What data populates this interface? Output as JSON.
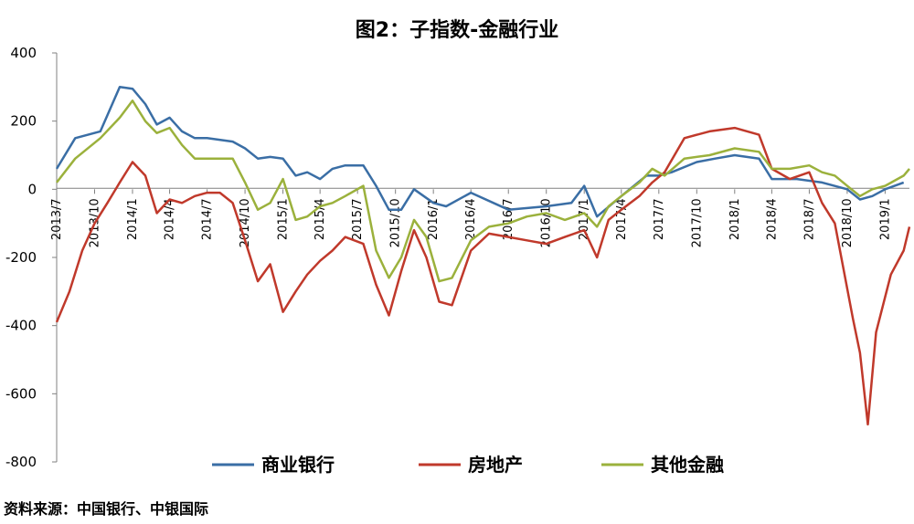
{
  "chart_data": {
    "type": "line",
    "title": "图2：子指数-金融行业",
    "ylim": [
      -800,
      400
    ],
    "yticks": [
      400,
      200,
      0,
      -200,
      -400,
      -600,
      -800
    ],
    "xlim": [
      "2013-07",
      "2019-03"
    ],
    "xticks": [
      "2013/7",
      "2013/10",
      "2014/1",
      "2014/4",
      "2014/7",
      "2014/10",
      "2015/1",
      "2015/4",
      "2015/7",
      "2015/10",
      "2016/1",
      "2016/4",
      "2016/7",
      "2016/10",
      "2017/1",
      "2017/4",
      "2017/7",
      "2017/10",
      "2018/1",
      "2018/4",
      "2018/7",
      "2018/10",
      "2019/1"
    ],
    "legend_position": "bottom",
    "series": [
      {
        "name": "商业银行",
        "color": "#3a6ea5",
        "points": [
          [
            "2013-07-01",
            60
          ],
          [
            "2013-08-15",
            150
          ],
          [
            "2013-10-15",
            170
          ],
          [
            "2013-12-01",
            300
          ],
          [
            "2014-01-01",
            295
          ],
          [
            "2014-02-01",
            250
          ],
          [
            "2014-03-01",
            190
          ],
          [
            "2014-04-01",
            210
          ],
          [
            "2014-05-01",
            170
          ],
          [
            "2014-06-01",
            150
          ],
          [
            "2014-07-01",
            150
          ],
          [
            "2014-09-01",
            140
          ],
          [
            "2014-10-01",
            120
          ],
          [
            "2014-11-01",
            90
          ],
          [
            "2014-12-01",
            95
          ],
          [
            "2015-01-01",
            90
          ],
          [
            "2015-02-01",
            40
          ],
          [
            "2015-03-01",
            50
          ],
          [
            "2015-04-01",
            30
          ],
          [
            "2015-05-01",
            60
          ],
          [
            "2015-06-01",
            70
          ],
          [
            "2015-07-15",
            70
          ],
          [
            "2015-08-15",
            10
          ],
          [
            "2015-09-15",
            -60
          ],
          [
            "2015-10-15",
            -60
          ],
          [
            "2015-11-15",
            0
          ],
          [
            "2016-01-01",
            -40
          ],
          [
            "2016-02-01",
            -50
          ],
          [
            "2016-04-01",
            -10
          ],
          [
            "2016-07-01",
            -60
          ],
          [
            "2016-10-01",
            -50
          ],
          [
            "2016-12-01",
            -40
          ],
          [
            "2017-01-01",
            10
          ],
          [
            "2017-02-01",
            -80
          ],
          [
            "2017-04-01",
            -20
          ],
          [
            "2017-06-01",
            40
          ],
          [
            "2017-07-01",
            40
          ],
          [
            "2017-08-01",
            50
          ],
          [
            "2017-10-01",
            80
          ],
          [
            "2017-11-15",
            90
          ],
          [
            "2018-01-01",
            100
          ],
          [
            "2018-03-01",
            90
          ],
          [
            "2018-04-01",
            30
          ],
          [
            "2018-06-01",
            30
          ],
          [
            "2018-08-01",
            20
          ],
          [
            "2018-10-01",
            0
          ],
          [
            "2018-11-01",
            -30
          ],
          [
            "2018-12-01",
            -20
          ],
          [
            "2019-01-01",
            0
          ],
          [
            "2019-02-15",
            20
          ]
        ]
      },
      {
        "name": "房地产",
        "color": "#c0392b",
        "points": [
          [
            "2013-07-01",
            -390
          ],
          [
            "2013-08-01",
            -300
          ],
          [
            "2013-09-01",
            -180
          ],
          [
            "2013-10-01",
            -100
          ],
          [
            "2013-11-01",
            -40
          ],
          [
            "2013-12-01",
            20
          ],
          [
            "2014-01-01",
            80
          ],
          [
            "2014-02-01",
            40
          ],
          [
            "2014-03-01",
            -70
          ],
          [
            "2014-04-01",
            -30
          ],
          [
            "2014-05-01",
            -40
          ],
          [
            "2014-06-01",
            -20
          ],
          [
            "2014-07-01",
            -10
          ],
          [
            "2014-08-01",
            -10
          ],
          [
            "2014-09-01",
            -40
          ],
          [
            "2014-10-01",
            -150
          ],
          [
            "2014-11-01",
            -270
          ],
          [
            "2014-12-01",
            -220
          ],
          [
            "2015-01-01",
            -360
          ],
          [
            "2015-02-01",
            -300
          ],
          [
            "2015-03-01",
            -250
          ],
          [
            "2015-04-01",
            -210
          ],
          [
            "2015-05-01",
            -180
          ],
          [
            "2015-06-01",
            -140
          ],
          [
            "2015-07-15",
            -160
          ],
          [
            "2015-08-15",
            -280
          ],
          [
            "2015-09-15",
            -370
          ],
          [
            "2015-10-15",
            -240
          ],
          [
            "2015-11-15",
            -120
          ],
          [
            "2015-12-15",
            -200
          ],
          [
            "2016-01-15",
            -330
          ],
          [
            "2016-02-15",
            -340
          ],
          [
            "2016-04-01",
            -180
          ],
          [
            "2016-05-15",
            -130
          ],
          [
            "2016-07-01",
            -140
          ],
          [
            "2016-08-15",
            -150
          ],
          [
            "2016-10-01",
            -160
          ],
          [
            "2016-11-15",
            -140
          ],
          [
            "2017-01-01",
            -120
          ],
          [
            "2017-02-01",
            -200
          ],
          [
            "2017-03-01",
            -90
          ],
          [
            "2017-04-01",
            -60
          ],
          [
            "2017-05-15",
            -20
          ],
          [
            "2017-06-15",
            20
          ],
          [
            "2017-07-15",
            50
          ],
          [
            "2017-09-01",
            150
          ],
          [
            "2017-11-01",
            170
          ],
          [
            "2018-01-01",
            180
          ],
          [
            "2018-03-01",
            160
          ],
          [
            "2018-04-01",
            60
          ],
          [
            "2018-05-15",
            30
          ],
          [
            "2018-07-01",
            50
          ],
          [
            "2018-08-01",
            -40
          ],
          [
            "2018-09-01",
            -100
          ],
          [
            "2018-10-15",
            -380
          ],
          [
            "2018-11-01",
            -480
          ],
          [
            "2018-11-20",
            -690
          ],
          [
            "2018-12-10",
            -420
          ],
          [
            "2019-01-15",
            -250
          ],
          [
            "2019-02-15",
            -180
          ],
          [
            "2019-03-01",
            -110
          ]
        ]
      },
      {
        "name": "其他金融",
        "color": "#9bb13c",
        "points": [
          [
            "2013-07-01",
            20
          ],
          [
            "2013-08-15",
            90
          ],
          [
            "2013-10-15",
            150
          ],
          [
            "2013-12-01",
            210
          ],
          [
            "2014-01-01",
            260
          ],
          [
            "2014-02-01",
            200
          ],
          [
            "2014-03-01",
            165
          ],
          [
            "2014-04-01",
            180
          ],
          [
            "2014-05-01",
            130
          ],
          [
            "2014-06-01",
            90
          ],
          [
            "2014-07-01",
            90
          ],
          [
            "2014-09-01",
            90
          ],
          [
            "2014-10-01",
            20
          ],
          [
            "2014-11-01",
            -60
          ],
          [
            "2014-12-01",
            -40
          ],
          [
            "2015-01-01",
            30
          ],
          [
            "2015-02-01",
            -90
          ],
          [
            "2015-03-01",
            -80
          ],
          [
            "2015-04-01",
            -50
          ],
          [
            "2015-05-01",
            -40
          ],
          [
            "2015-06-01",
            -20
          ],
          [
            "2015-07-15",
            10
          ],
          [
            "2015-08-15",
            -180
          ],
          [
            "2015-09-15",
            -260
          ],
          [
            "2015-10-15",
            -200
          ],
          [
            "2015-11-15",
            -90
          ],
          [
            "2015-12-15",
            -140
          ],
          [
            "2016-01-15",
            -270
          ],
          [
            "2016-02-15",
            -260
          ],
          [
            "2016-04-01",
            -150
          ],
          [
            "2016-05-15",
            -110
          ],
          [
            "2016-07-01",
            -100
          ],
          [
            "2016-08-15",
            -80
          ],
          [
            "2016-10-01",
            -70
          ],
          [
            "2016-11-15",
            -90
          ],
          [
            "2017-01-01",
            -70
          ],
          [
            "2017-02-01",
            -110
          ],
          [
            "2017-03-01",
            -50
          ],
          [
            "2017-04-01",
            -20
          ],
          [
            "2017-05-15",
            20
          ],
          [
            "2017-06-15",
            60
          ],
          [
            "2017-07-15",
            40
          ],
          [
            "2017-09-01",
            90
          ],
          [
            "2017-11-01",
            100
          ],
          [
            "2018-01-01",
            120
          ],
          [
            "2018-03-01",
            110
          ],
          [
            "2018-04-01",
            60
          ],
          [
            "2018-05-15",
            60
          ],
          [
            "2018-07-01",
            70
          ],
          [
            "2018-08-01",
            50
          ],
          [
            "2018-09-01",
            40
          ],
          [
            "2018-10-01",
            10
          ],
          [
            "2018-11-01",
            -20
          ],
          [
            "2018-12-01",
            0
          ],
          [
            "2019-01-01",
            10
          ],
          [
            "2019-02-15",
            40
          ],
          [
            "2019-03-01",
            60
          ]
        ]
      }
    ]
  },
  "source": "资料来源：中国银行、中银国际"
}
